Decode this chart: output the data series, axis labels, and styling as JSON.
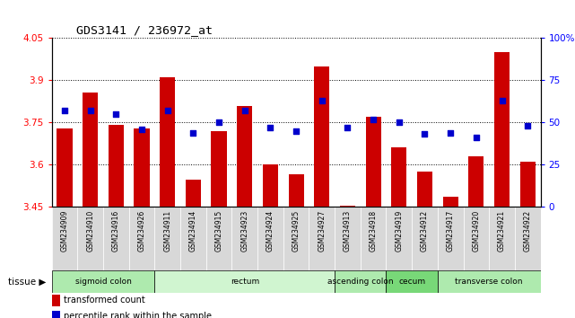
{
  "title": "GDS3141 / 236972_at",
  "samples": [
    "GSM234909",
    "GSM234910",
    "GSM234916",
    "GSM234926",
    "GSM234911",
    "GSM234914",
    "GSM234915",
    "GSM234923",
    "GSM234924",
    "GSM234925",
    "GSM234927",
    "GSM234913",
    "GSM234918",
    "GSM234919",
    "GSM234912",
    "GSM234917",
    "GSM234920",
    "GSM234921",
    "GSM234922"
  ],
  "bar_values": [
    3.73,
    3.855,
    3.74,
    3.73,
    3.91,
    3.545,
    3.72,
    3.81,
    3.6,
    3.565,
    3.95,
    3.455,
    3.77,
    3.66,
    3.575,
    3.485,
    3.63,
    4.0,
    3.61
  ],
  "dot_values_pct": [
    57,
    57,
    55,
    46,
    57,
    44,
    50,
    57,
    47,
    45,
    63,
    47,
    52,
    50,
    43,
    44,
    41,
    63,
    48
  ],
  "ymin": 3.45,
  "ymax": 4.05,
  "yticks_left": [
    3.45,
    3.6,
    3.75,
    3.9,
    4.05
  ],
  "yticks_right": [
    0,
    25,
    50,
    75,
    100
  ],
  "ytick_right_labels": [
    "0",
    "25",
    "50",
    "75",
    "100%"
  ],
  "bar_color": "#cc0000",
  "dot_color": "#0000cc",
  "tissue_groups": [
    {
      "label": "sigmoid colon",
      "start": 0,
      "end": 4,
      "color": "#aeeaae"
    },
    {
      "label": "rectum",
      "start": 4,
      "end": 11,
      "color": "#d0f5d0"
    },
    {
      "label": "ascending colon",
      "start": 11,
      "end": 13,
      "color": "#aeeaae"
    },
    {
      "label": "cecum",
      "start": 13,
      "end": 15,
      "color": "#78d878"
    },
    {
      "label": "transverse colon",
      "start": 15,
      "end": 19,
      "color": "#aeeaae"
    }
  ],
  "tissue_label": "tissue",
  "legend_bar": "transformed count",
  "legend_dot": "percentile rank within the sample"
}
